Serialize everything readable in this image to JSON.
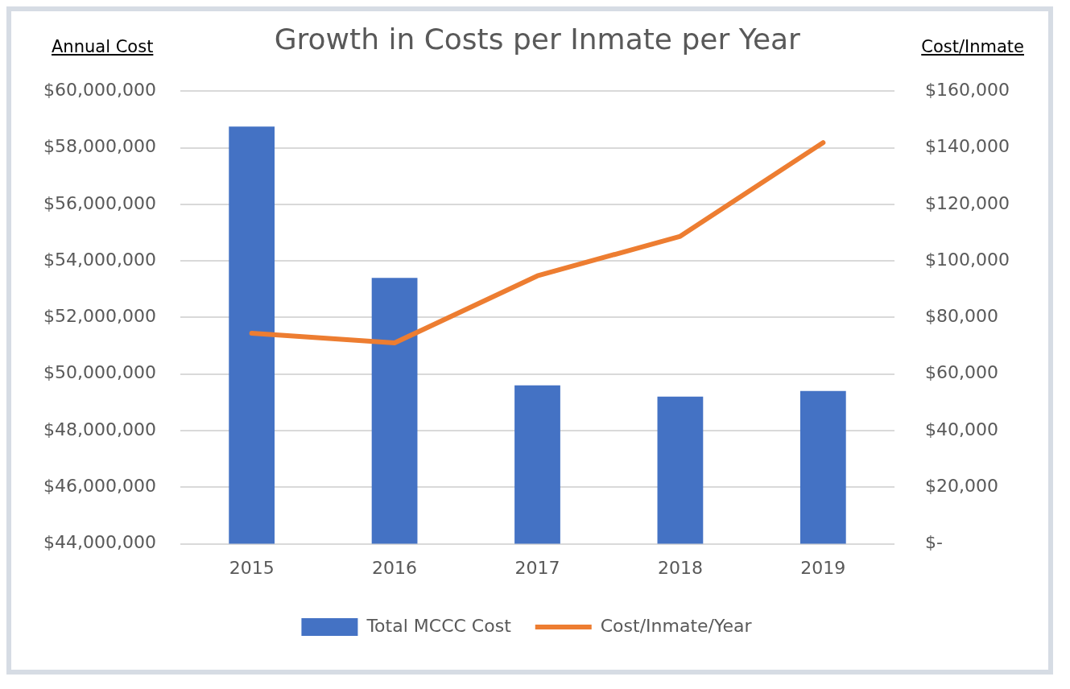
{
  "chart_data": {
    "type": "bar",
    "title": "Growth in Costs per Inmate per Year",
    "ylabel": "Annual Cost",
    "y2label": "Cost/Inmate",
    "categories": [
      "2015",
      "2016",
      "2017",
      "2018",
      "2019"
    ],
    "series": [
      {
        "name": "Total MCCC Cost",
        "color": "#4472c4",
        "values": [
          58750000,
          53400000,
          49600000,
          49200000,
          49400000
        ]
      },
      {
        "name": "Cost/Inmate/Year",
        "type": "line",
        "axis": "y2",
        "color": "#ed7d31",
        "values": [
          74400,
          71000,
          94700,
          108700,
          141800
        ]
      }
    ],
    "ylim": [
      44000000,
      60000000
    ],
    "yticks": [
      {
        "value": 44000000,
        "label": "$44,000,000"
      },
      {
        "value": 46000000,
        "label": "$46,000,000"
      },
      {
        "value": 48000000,
        "label": "$48,000,000"
      },
      {
        "value": 50000000,
        "label": "$50,000,000"
      },
      {
        "value": 52000000,
        "label": "$52,000,000"
      },
      {
        "value": 54000000,
        "label": "$54,000,000"
      },
      {
        "value": 56000000,
        "label": "$56,000,000"
      },
      {
        "value": 58000000,
        "label": "$58,000,000"
      },
      {
        "value": 60000000,
        "label": "$60,000,000"
      }
    ],
    "y2lim": [
      0,
      160000
    ],
    "y2ticks": [
      {
        "value": 0,
        "label": "$-"
      },
      {
        "value": 20000,
        "label": "$20,000"
      },
      {
        "value": 40000,
        "label": "$40,000"
      },
      {
        "value": 60000,
        "label": "$60,000"
      },
      {
        "value": 80000,
        "label": "$80,000"
      },
      {
        "value": 100000,
        "label": "$100,000"
      },
      {
        "value": 120000,
        "label": "$120,000"
      },
      {
        "value": 140000,
        "label": "$140,000"
      },
      {
        "value": 160000,
        "label": "$160,000"
      }
    ],
    "grid": "y",
    "legend": "bottom",
    "marker": "none",
    "line_style": "solid"
  }
}
